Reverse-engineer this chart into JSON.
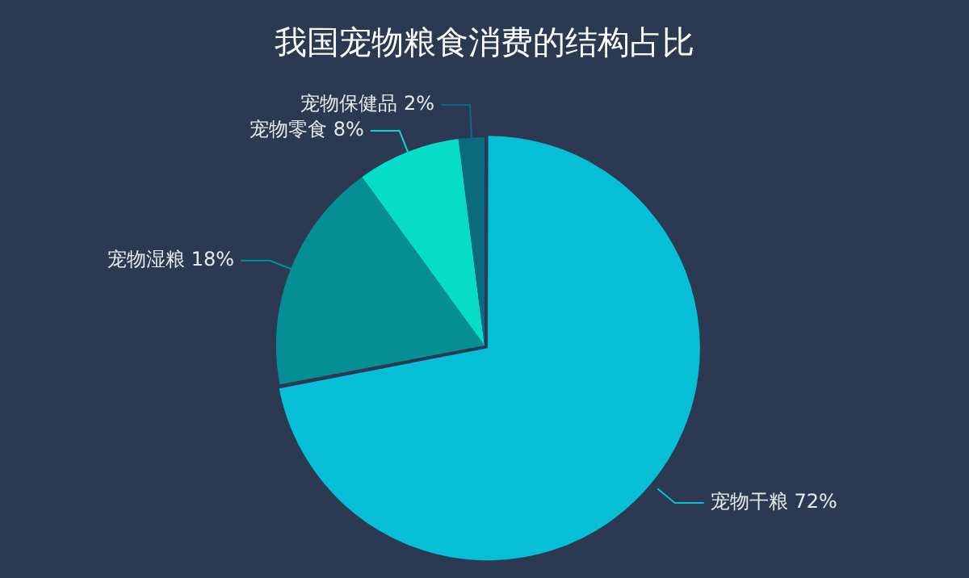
{
  "chart_data": {
    "type": "pie",
    "title": "我国宠物粮食消费的结构占比",
    "categories": [
      "宠物干粮",
      "宠物湿粮",
      "宠物零食",
      "宠物保健品"
    ],
    "values": [
      72,
      18,
      8,
      2
    ],
    "value_labels": [
      "72%",
      "18%",
      "8%",
      "2%"
    ],
    "colors": [
      "#06bed6",
      "#058e93",
      "#07dcc8",
      "#0b6a80"
    ],
    "legend": false
  }
}
